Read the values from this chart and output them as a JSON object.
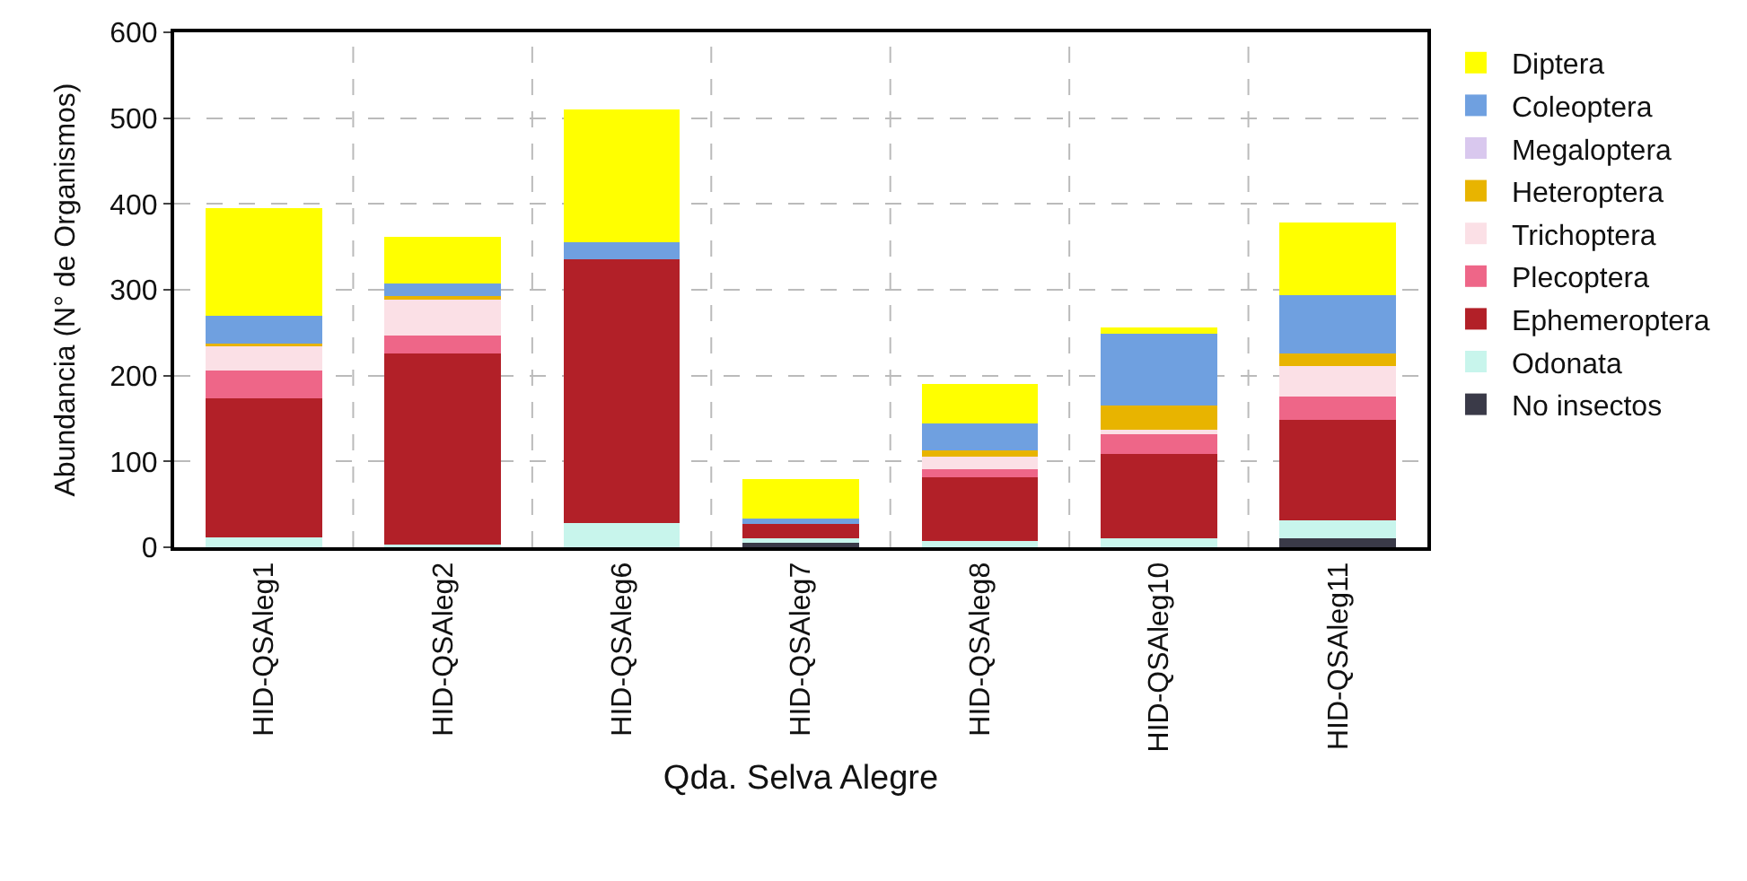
{
  "chart_data": {
    "type": "bar",
    "stacked": true,
    "xlabel": "Qda. Selva Alegre",
    "ylabel": "Abundancia (N° de Organismos)",
    "categories": [
      "HID-QSAleg1",
      "HID-QSAleg2",
      "HID-QSAleg6",
      "HID-QSAleg7",
      "HID-QSAleg8",
      "HID-QSAleg10",
      "HID-QSAleg11"
    ],
    "ylim": [
      0,
      600
    ],
    "yticks": [
      0,
      100,
      200,
      300,
      400,
      500,
      600
    ],
    "grid": true,
    "legend": "right",
    "series": [
      {
        "name": "No insectos",
        "color": "#3a3a48",
        "values": [
          0,
          0,
          0,
          5,
          0,
          0,
          10
        ]
      },
      {
        "name": "Odonata",
        "color": "#c8f5ec",
        "values": [
          12,
          3,
          28,
          5,
          7,
          10,
          21
        ]
      },
      {
        "name": "Ephemeroptera",
        "color": "#b22028",
        "values": [
          162,
          223,
          308,
          19,
          75,
          99,
          117
        ]
      },
      {
        "name": "Plecoptera",
        "color": "#ee6688",
        "values": [
          32,
          21,
          0,
          0,
          9,
          24,
          28
        ]
      },
      {
        "name": "Trichoptera",
        "color": "#fbe0e6",
        "values": [
          29,
          41,
          0,
          0,
          15,
          4,
          35
        ]
      },
      {
        "name": "Heteroptera",
        "color": "#e8b400",
        "values": [
          2,
          5,
          0,
          0,
          7,
          28,
          15
        ]
      },
      {
        "name": "Megaloptera",
        "color": "#d9c8ee",
        "values": [
          0,
          0,
          0,
          0,
          0,
          0,
          0
        ]
      },
      {
        "name": "Coleoptera",
        "color": "#6fa0e0",
        "values": [
          33,
          14,
          19,
          4,
          31,
          84,
          68
        ]
      },
      {
        "name": "Diptera",
        "color": "#ffff00",
        "values": [
          125,
          55,
          155,
          46,
          46,
          7,
          84
        ]
      }
    ]
  }
}
